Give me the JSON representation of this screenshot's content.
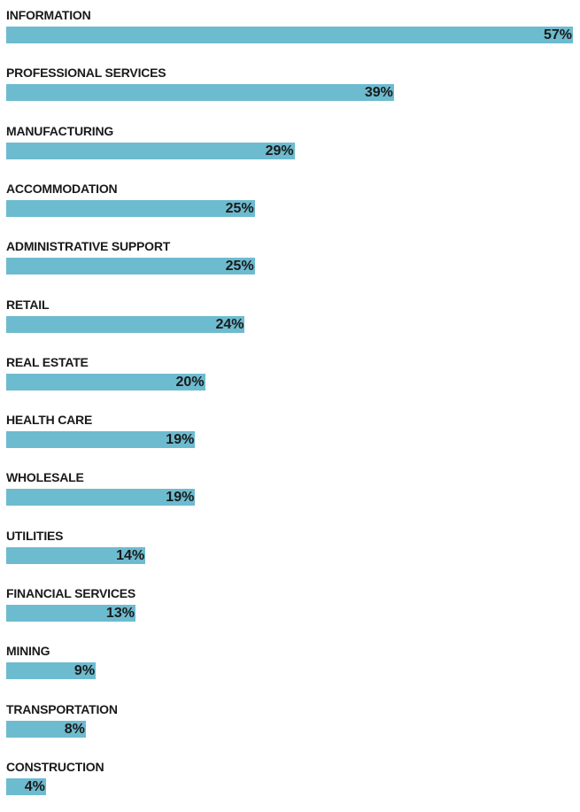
{
  "chart_data": {
    "type": "bar",
    "orientation": "horizontal",
    "title": "",
    "xlabel": "",
    "ylabel": "",
    "xlim": [
      0,
      57
    ],
    "grid": false,
    "bar_color": "#6dbbcf",
    "categories": [
      "INFORMATION",
      "PROFESSIONAL SERVICES",
      "MANUFACTURING",
      "ACCOMMODATION",
      "ADMINISTRATIVE SUPPORT",
      "RETAIL",
      "REAL ESTATE",
      "HEALTH CARE",
      "WHOLESALE",
      "UTILITIES",
      "FINANCIAL SERVICES",
      "MINING",
      "TRANSPORTATION",
      "CONSTRUCTION"
    ],
    "values": [
      57,
      39,
      29,
      25,
      25,
      24,
      20,
      19,
      19,
      14,
      13,
      9,
      8,
      4
    ],
    "value_labels": [
      "57%",
      "39%",
      "29%",
      "25%",
      "25%",
      "24%",
      "20%",
      "19%",
      "19%",
      "14%",
      "13%",
      "9%",
      "8%",
      "4%"
    ]
  }
}
